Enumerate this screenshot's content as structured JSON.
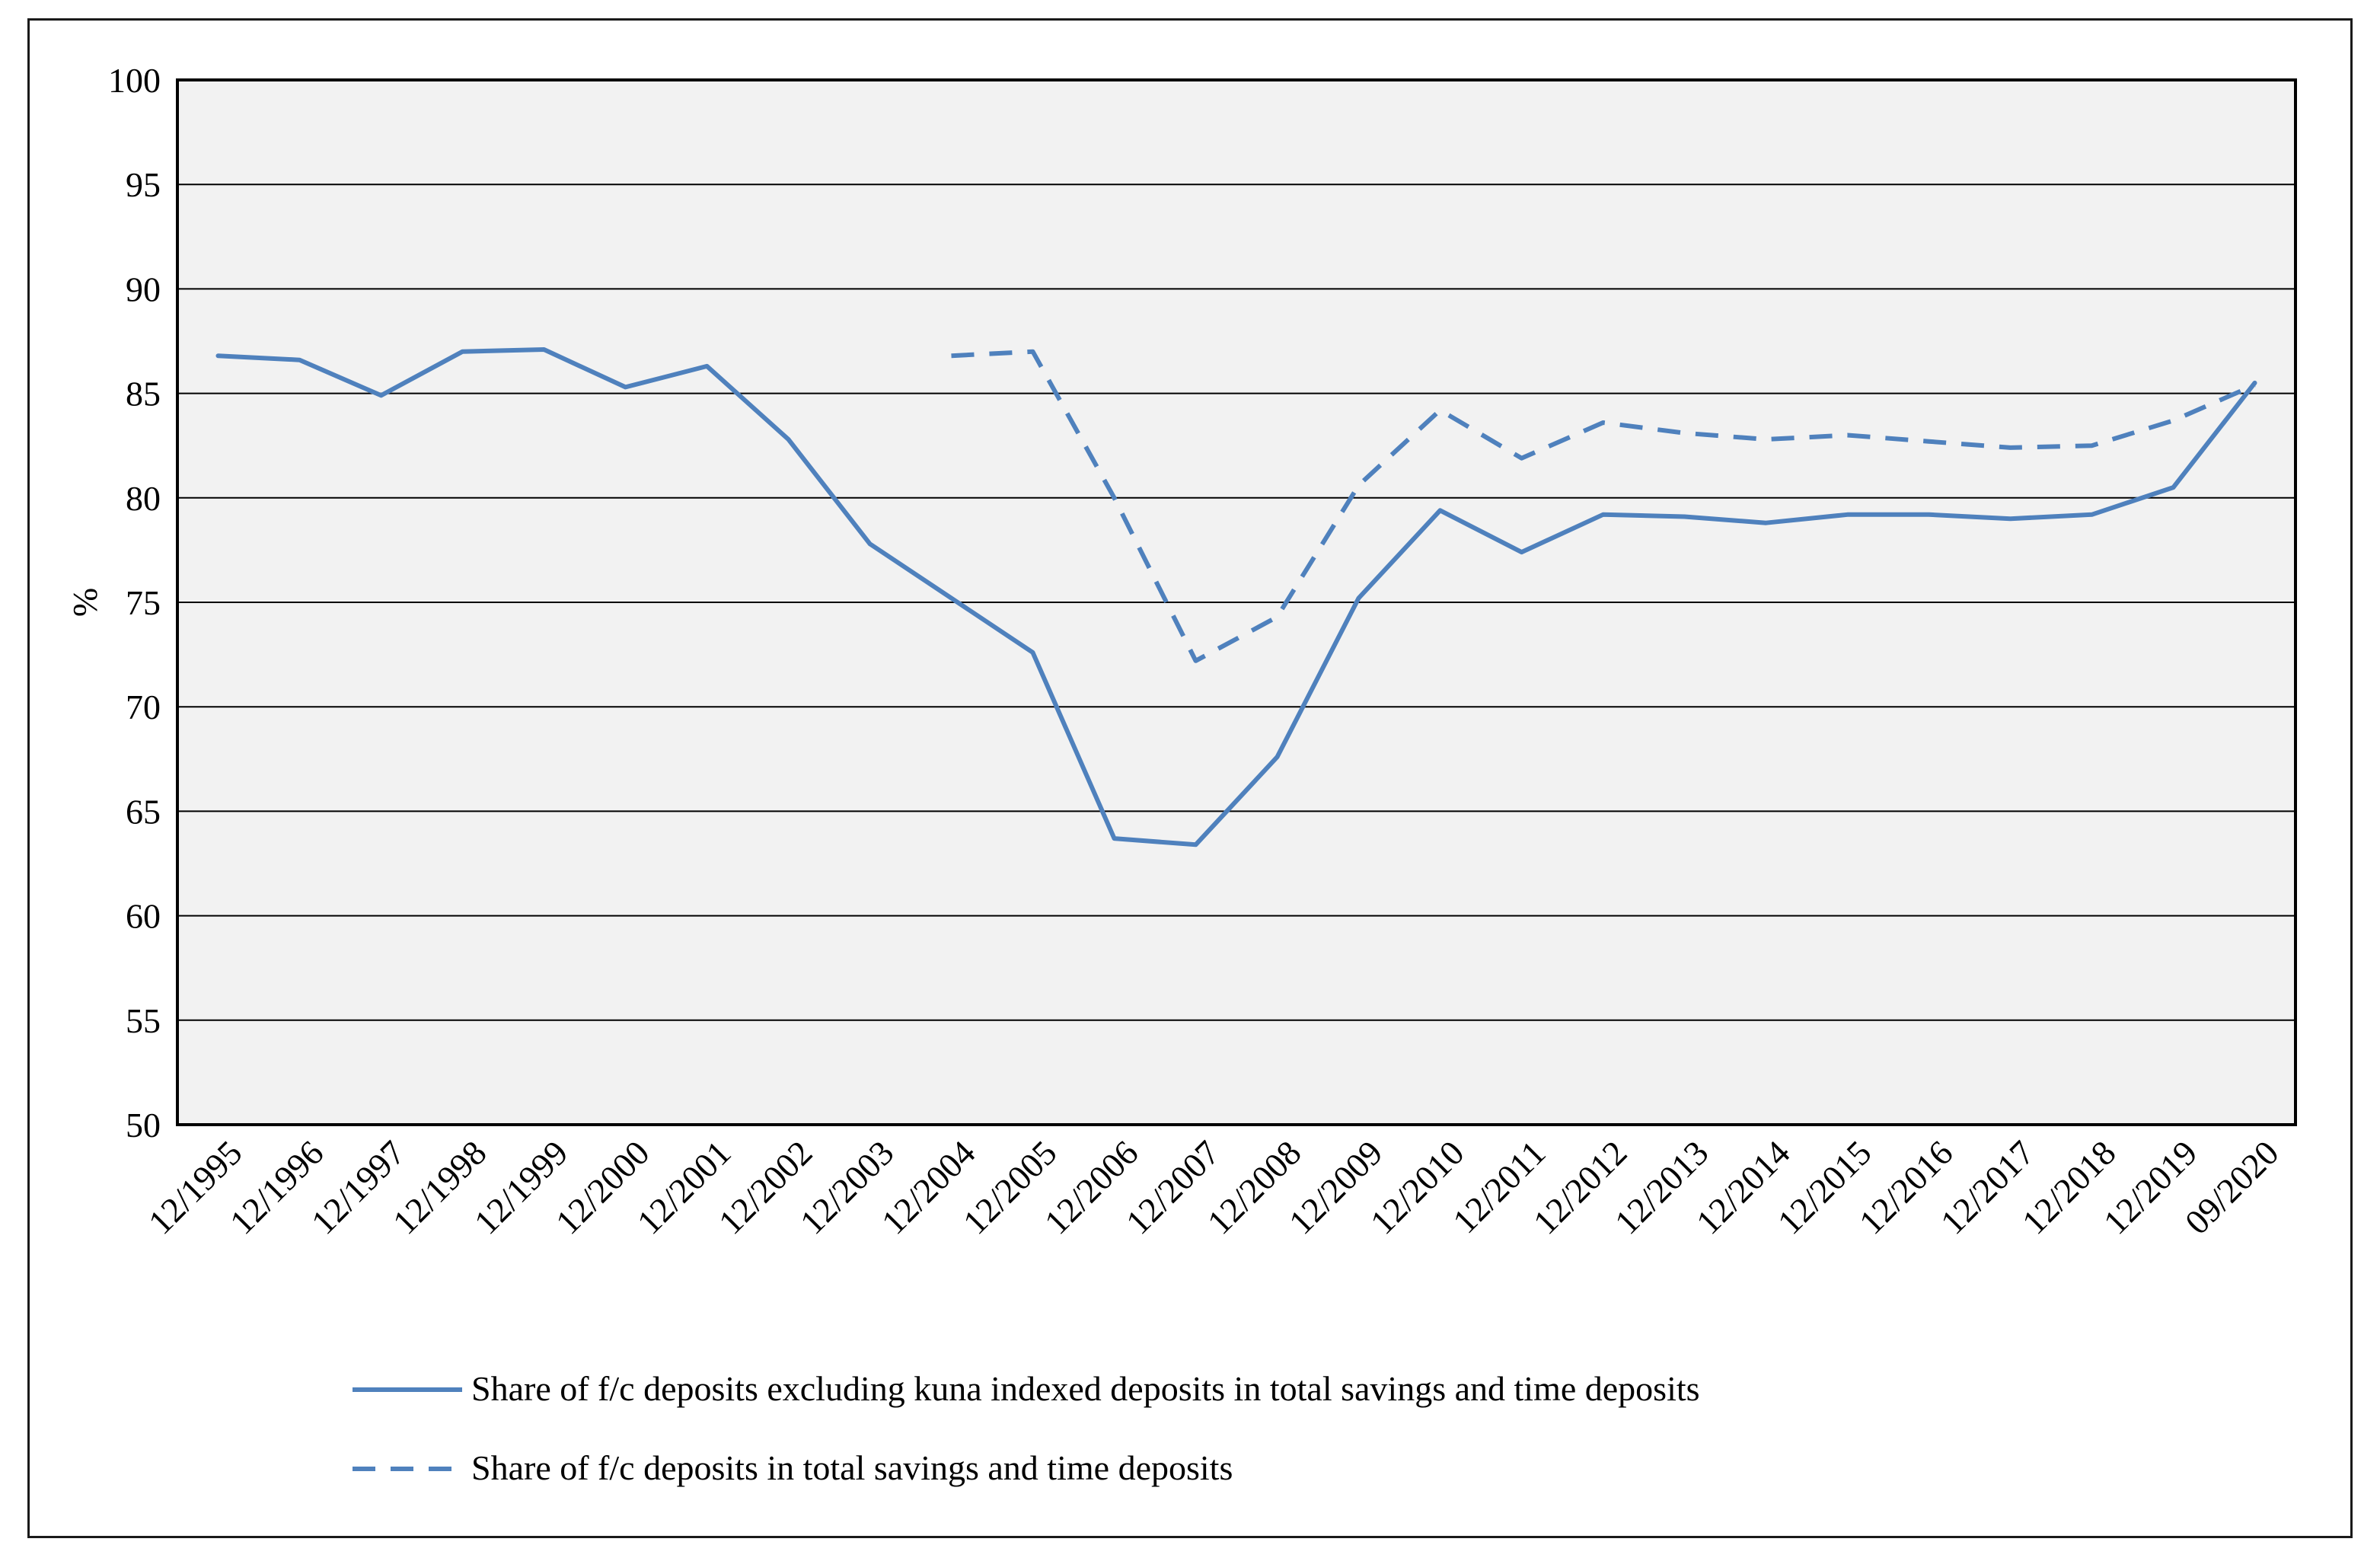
{
  "chart_data": {
    "type": "line",
    "title": "",
    "xlabel": "",
    "ylabel": "%",
    "ylim": [
      50,
      100
    ],
    "yticks": [
      "100",
      "95",
      "90",
      "85",
      "80",
      "75",
      "70",
      "65",
      "60",
      "55",
      "50"
    ],
    "categories": [
      "12/1995",
      "12/1996",
      "12/1997",
      "12/1998",
      "12/1999",
      "12/2000",
      "12/2001",
      "12/2002",
      "12/2003",
      "12/2004",
      "12/2005",
      "12/2006",
      "12/2007",
      "12/2008",
      "12/2009",
      "12/2010",
      "12/2011",
      "12/2012",
      "12/2013",
      "12/2014",
      "12/2015",
      "12/2016",
      "12/2017",
      "12/2018",
      "12/2019",
      "09/2020"
    ],
    "series": [
      {
        "name": "Share of f/c deposits excluding kuna indexed deposits in total savings and time deposits",
        "style": "solid",
        "color": "#4f81bd",
        "values": [
          86.8,
          86.6,
          84.9,
          87.0,
          87.1,
          85.3,
          86.3,
          82.8,
          77.8,
          75.2,
          72.6,
          63.7,
          63.4,
          67.6,
          75.2,
          79.4,
          77.4,
          79.2,
          79.1,
          78.8,
          79.2,
          79.2,
          79.0,
          79.2,
          80.5,
          85.5
        ]
      },
      {
        "name": "Share of f/c deposits in total savings and time deposits",
        "style": "dashed",
        "color": "#4f81bd",
        "values": [
          null,
          null,
          null,
          null,
          null,
          null,
          null,
          null,
          null,
          86.8,
          87.0,
          80.0,
          72.2,
          74.3,
          80.6,
          84.2,
          81.9,
          83.6,
          83.1,
          82.8,
          83.0,
          82.7,
          82.4,
          82.5,
          83.7,
          85.4
        ]
      }
    ],
    "grid": "horizontal",
    "legend_position": "bottom-center"
  },
  "colors": {
    "plot_bg": "#f2f2f2",
    "series": "#4f81bd",
    "grid": "#000000"
  }
}
